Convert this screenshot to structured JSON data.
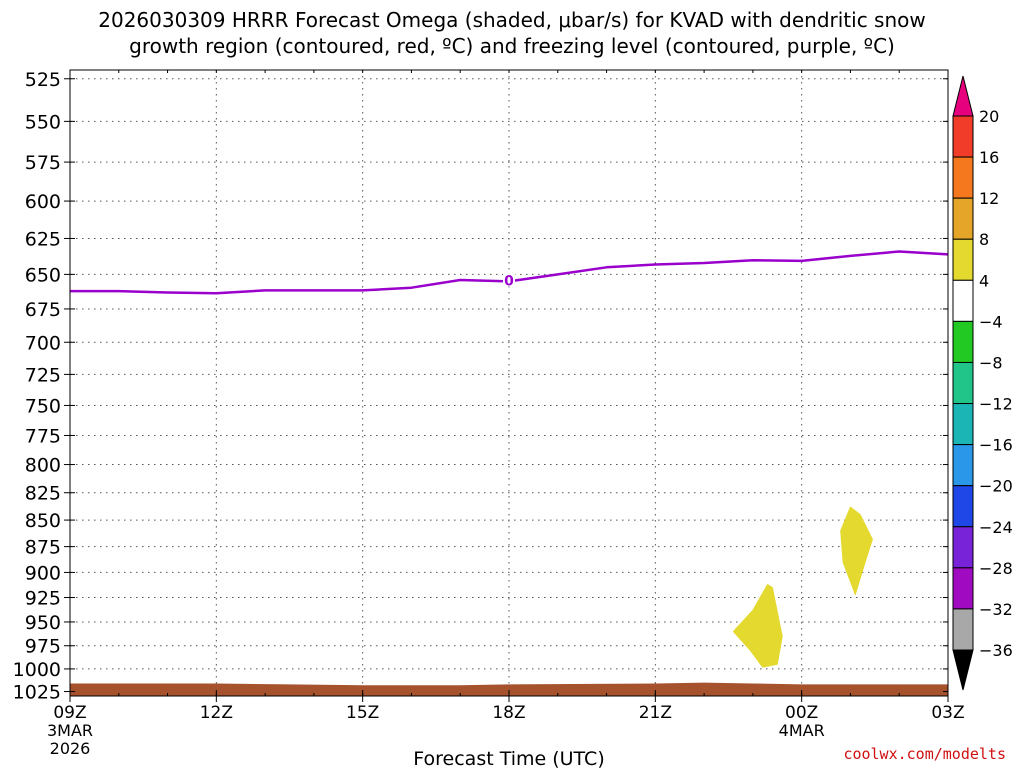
{
  "header": {
    "title_line1": "2026030309 HRRR Forecast Omega (shaded, μbar/s) for KVAD with dendritic snow",
    "title_line2": "growth region (contoured, red, ºC) and freezing level (contoured, purple, ºC)"
  },
  "credit": "coolwx.com/modelts",
  "chart_data": {
    "type": "time-height cross section",
    "xlabel": "Forecast Time (UTC)",
    "ylabel": "",
    "x_ticks": [
      {
        "hours": 0,
        "label": "09Z",
        "sub1": "3MAR",
        "sub2": "2026"
      },
      {
        "hours": 3,
        "label": "12Z"
      },
      {
        "hours": 6,
        "label": "15Z"
      },
      {
        "hours": 9,
        "label": "18Z"
      },
      {
        "hours": 12,
        "label": "21Z"
      },
      {
        "hours": 15,
        "label": "00Z",
        "sub1": "4MAR"
      },
      {
        "hours": 18,
        "label": "03Z"
      }
    ],
    "xlim": [
      0,
      18
    ],
    "y_ticks": [
      525,
      550,
      575,
      600,
      625,
      650,
      675,
      700,
      725,
      750,
      775,
      800,
      825,
      850,
      875,
      900,
      925,
      950,
      975,
      1000,
      1025
    ],
    "ylim": [
      520,
      1030
    ],
    "y_scale": "log",
    "grid": true,
    "freezing_level": {
      "color": "#9900cc",
      "label": "0",
      "label_at": {
        "hours": 9.0,
        "pressure": 655
      },
      "points": [
        [
          0,
          662
        ],
        [
          1,
          662
        ],
        [
          2,
          663
        ],
        [
          3,
          663.5
        ],
        [
          4,
          661.5
        ],
        [
          5,
          661.5
        ],
        [
          6,
          661.5
        ],
        [
          7,
          659.5
        ],
        [
          8,
          654
        ],
        [
          9,
          655
        ],
        [
          10,
          650
        ],
        [
          11,
          645
        ],
        [
          12,
          643
        ],
        [
          13,
          642
        ],
        [
          14,
          640
        ],
        [
          15,
          640.5
        ],
        [
          16,
          637
        ],
        [
          17,
          634
        ],
        [
          18,
          636
        ]
      ]
    },
    "omega_areas": [
      {
        "value_range": [
          4,
          8
        ],
        "color": "#e4d92e",
        "points": [
          [
            14.0,
            938
          ],
          [
            14.3,
            912
          ],
          [
            14.4,
            915
          ],
          [
            14.6,
            965
          ],
          [
            14.5,
            995
          ],
          [
            14.2,
            998
          ],
          [
            13.95,
            980
          ],
          [
            13.6,
            960
          ]
        ]
      },
      {
        "value_range": [
          4,
          8
        ],
        "color": "#e4d92e",
        "points": [
          [
            15.8,
            860
          ],
          [
            16.0,
            838
          ],
          [
            16.2,
            845
          ],
          [
            16.45,
            868
          ],
          [
            16.3,
            890
          ],
          [
            16.1,
            922
          ],
          [
            15.85,
            890
          ]
        ]
      }
    ],
    "terrain": {
      "color": "#a5522d",
      "points": [
        [
          0,
          1016
        ],
        [
          3,
          1016
        ],
        [
          4.5,
          1017
        ],
        [
          6,
          1018
        ],
        [
          8,
          1018
        ],
        [
          9,
          1017
        ],
        [
          12,
          1016
        ],
        [
          13,
          1015
        ],
        [
          14,
          1016
        ],
        [
          15,
          1017
        ],
        [
          18,
          1017
        ]
      ]
    },
    "colorbar": {
      "ticks": [
        20,
        16,
        12,
        8,
        4,
        -4,
        -8,
        -12,
        -16,
        -20,
        -24,
        -28,
        -32,
        -36
      ],
      "bands": [
        {
          "color": "#e6007e",
          "label": ""
        },
        {
          "color": "#f03c28",
          "label": "20"
        },
        {
          "color": "#f5781e",
          "label": "16"
        },
        {
          "color": "#e5a528",
          "label": "12"
        },
        {
          "color": "#e4d92e",
          "label": "8"
        },
        {
          "color": "#ffffff",
          "label": "4"
        },
        {
          "color": "#22c922",
          "label": "-4"
        },
        {
          "color": "#21c58a",
          "label": "-8"
        },
        {
          "color": "#1cb5b5",
          "label": "-12"
        },
        {
          "color": "#2a97e8",
          "label": "-16"
        },
        {
          "color": "#1f46e6",
          "label": "-20"
        },
        {
          "color": "#7823d8",
          "label": "-24"
        },
        {
          "color": "#a00ac0",
          "label": "-28"
        },
        {
          "color": "#a8a8a8",
          "label": "-32"
        },
        {
          "color": "#000000",
          "label": "-36"
        }
      ]
    }
  }
}
